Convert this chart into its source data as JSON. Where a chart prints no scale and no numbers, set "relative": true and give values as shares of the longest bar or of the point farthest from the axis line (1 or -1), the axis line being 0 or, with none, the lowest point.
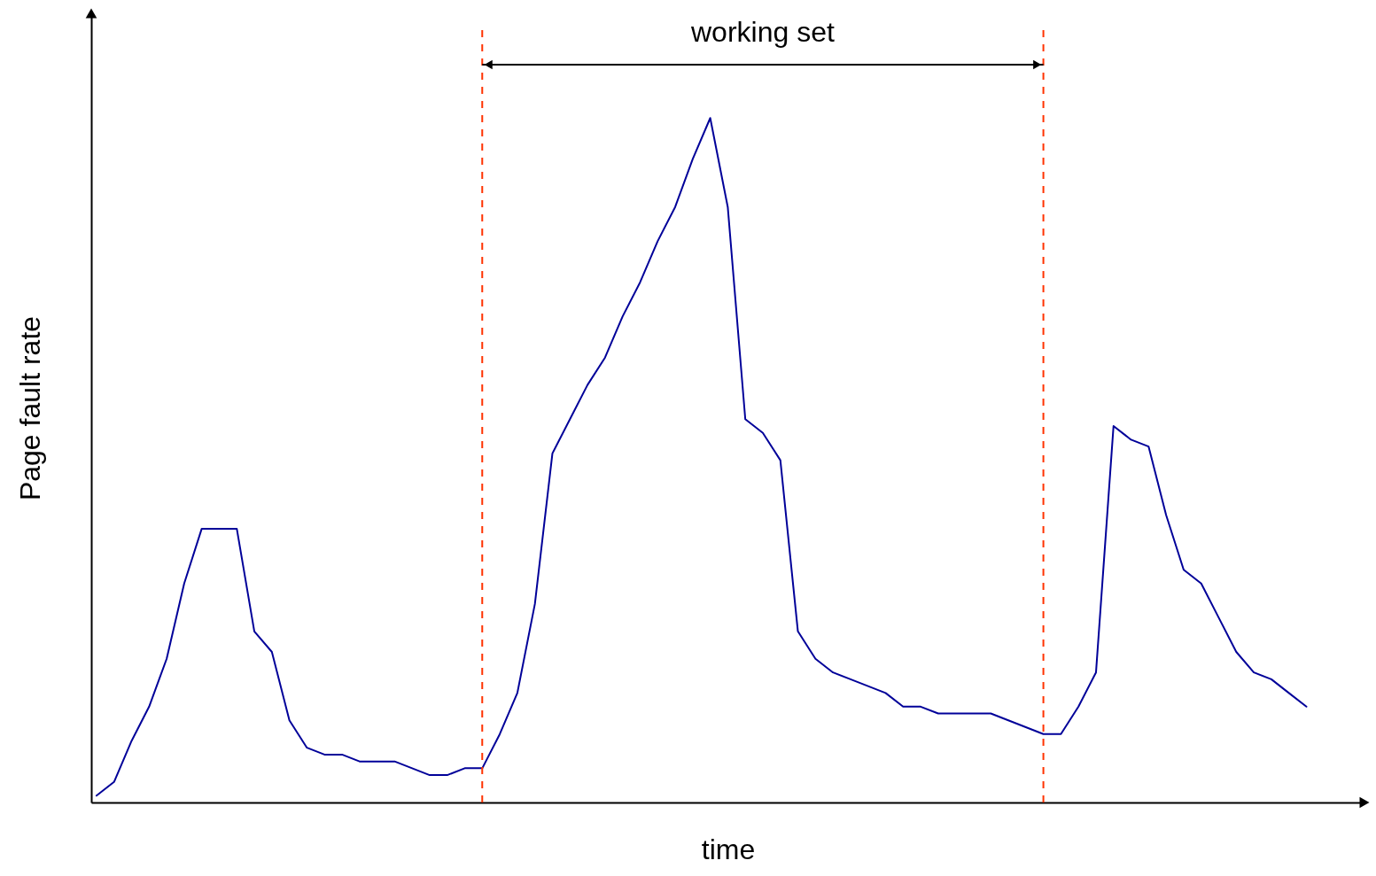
{
  "chart_data": {
    "type": "line",
    "xlabel": "time",
    "ylabel": "Page fault rate",
    "relative": true,
    "grid": false,
    "marker": "none",
    "line_style": "solid",
    "categories": [
      null,
      null,
      null,
      null,
      null,
      null,
      null,
      null,
      null,
      null,
      null,
      null,
      null,
      null,
      null,
      null,
      null,
      null,
      null,
      null,
      null,
      null,
      null,
      null,
      null,
      null,
      null,
      null,
      null,
      null,
      null,
      null,
      null,
      null,
      null,
      null,
      null,
      null,
      null,
      null,
      null,
      null,
      null,
      null,
      null,
      null,
      null,
      null,
      null,
      null,
      null,
      null,
      null,
      null,
      null,
      null,
      null,
      null,
      null,
      null,
      null,
      null,
      null,
      null,
      null,
      null,
      null,
      null,
      null,
      null
    ],
    "series": [
      {
        "color": "#000099",
        "values": [
          0.01,
          0.03,
          0.09,
          0.14,
          0.21,
          0.32,
          0.4,
          0.4,
          0.4,
          0.25,
          0.22,
          0.12,
          0.08,
          0.07,
          0.07,
          0.06,
          0.06,
          0.06,
          0.05,
          0.04,
          0.04,
          0.05,
          0.05,
          0.1,
          0.16,
          0.29,
          0.51,
          0.56,
          0.61,
          0.65,
          0.71,
          0.76,
          0.82,
          0.87,
          0.94,
          1.0,
          0.87,
          0.56,
          0.54,
          0.5,
          0.25,
          0.21,
          0.19,
          0.18,
          0.17,
          0.16,
          0.14,
          0.14,
          0.13,
          0.13,
          0.13,
          0.13,
          0.12,
          0.11,
          0.1,
          0.1,
          0.14,
          0.19,
          0.55,
          0.53,
          0.52,
          0.42,
          0.34,
          0.32,
          0.27,
          0.22,
          0.19,
          0.18,
          0.16,
          0.14
        ]
      }
    ],
    "annotations": [
      "working set"
    ]
  }
}
